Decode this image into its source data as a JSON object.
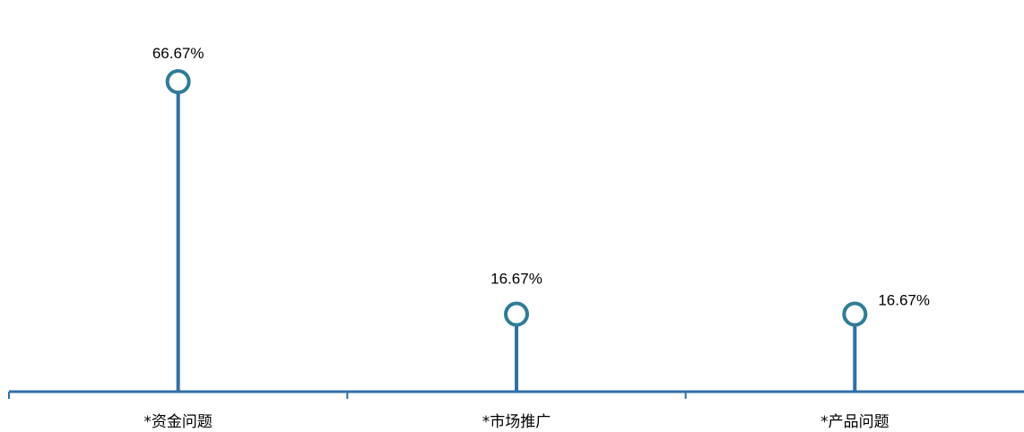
{
  "chart_data": {
    "type": "lollipop",
    "categories": [
      "*资金问题",
      "*市场推广",
      "*产品问题"
    ],
    "values": [
      66.67,
      16.67,
      16.67
    ],
    "data_labels": [
      "66.67%",
      "16.67%",
      "16.67%"
    ],
    "ylim": [
      0,
      80
    ],
    "grid": false,
    "legend": "none",
    "colors": {
      "stem": "#2f6fa8",
      "marker": "#2e7d96",
      "axis": "#2f6fa8"
    }
  }
}
